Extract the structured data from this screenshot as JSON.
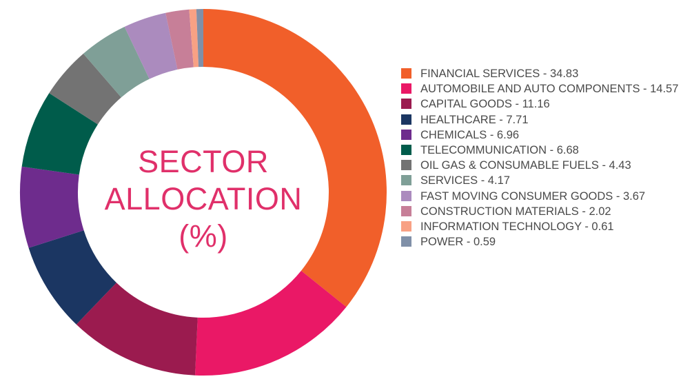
{
  "chart_data": {
    "type": "pie",
    "donut": true,
    "title_lines": [
      "SECTOR",
      "ALLOCATION",
      "(%)"
    ],
    "title_color": "#e0306a",
    "start": "top",
    "direction": "clockwise",
    "legend_position": "right",
    "series": [
      {
        "label": "FINANCIAL SERVICES - 34.83",
        "category": "FINANCIAL SERVICES",
        "value": 34.83,
        "color": "#f15f2a"
      },
      {
        "label": "AUTOMOBILE AND AUTO COMPONENTS - 14.57",
        "category": "AUTOMOBILE AND AUTO COMPONENTS",
        "value": 14.57,
        "color": "#ea1866"
      },
      {
        "label": "CAPITAL GOODS - 11.16",
        "category": "CAPITAL GOODS",
        "value": 11.16,
        "color": "#9b1b4f"
      },
      {
        "label": "HEALTHCARE - 7.71",
        "category": "HEALTHCARE",
        "value": 7.71,
        "color": "#1b3662"
      },
      {
        "label": "CHEMICALS - 6.96",
        "category": "CHEMICALS",
        "value": 6.96,
        "color": "#6e2c8d"
      },
      {
        "label": "TELECOMMUNICATION - 6.68",
        "category": "TELECOMMUNICATION",
        "value": 6.68,
        "color": "#005c4b"
      },
      {
        "label": "OIL GAS & CONSUMABLE FUELS - 4.43",
        "category": "OIL GAS & CONSUMABLE FUELS",
        "value": 4.43,
        "color": "#737373"
      },
      {
        "label": "SERVICES - 4.17",
        "category": "SERVICES",
        "value": 4.17,
        "color": "#7f9f97"
      },
      {
        "label": "FAST MOVING CONSUMER GOODS - 3.67",
        "category": "FAST MOVING CONSUMER GOODS",
        "value": 3.67,
        "color": "#ab8bbe"
      },
      {
        "label": "CONSTRUCTION MATERIALS - 2.02",
        "category": "CONSTRUCTION MATERIALS",
        "value": 2.02,
        "color": "#c77f98"
      },
      {
        "label": "INFORMATION TECHNOLOGY - 0.61",
        "category": "INFORMATION TECHNOLOGY",
        "value": 0.61,
        "color": "#f8a184"
      },
      {
        "label": "POWER - 0.59",
        "category": "POWER",
        "value": 0.59,
        "color": "#8090a8"
      }
    ]
  }
}
